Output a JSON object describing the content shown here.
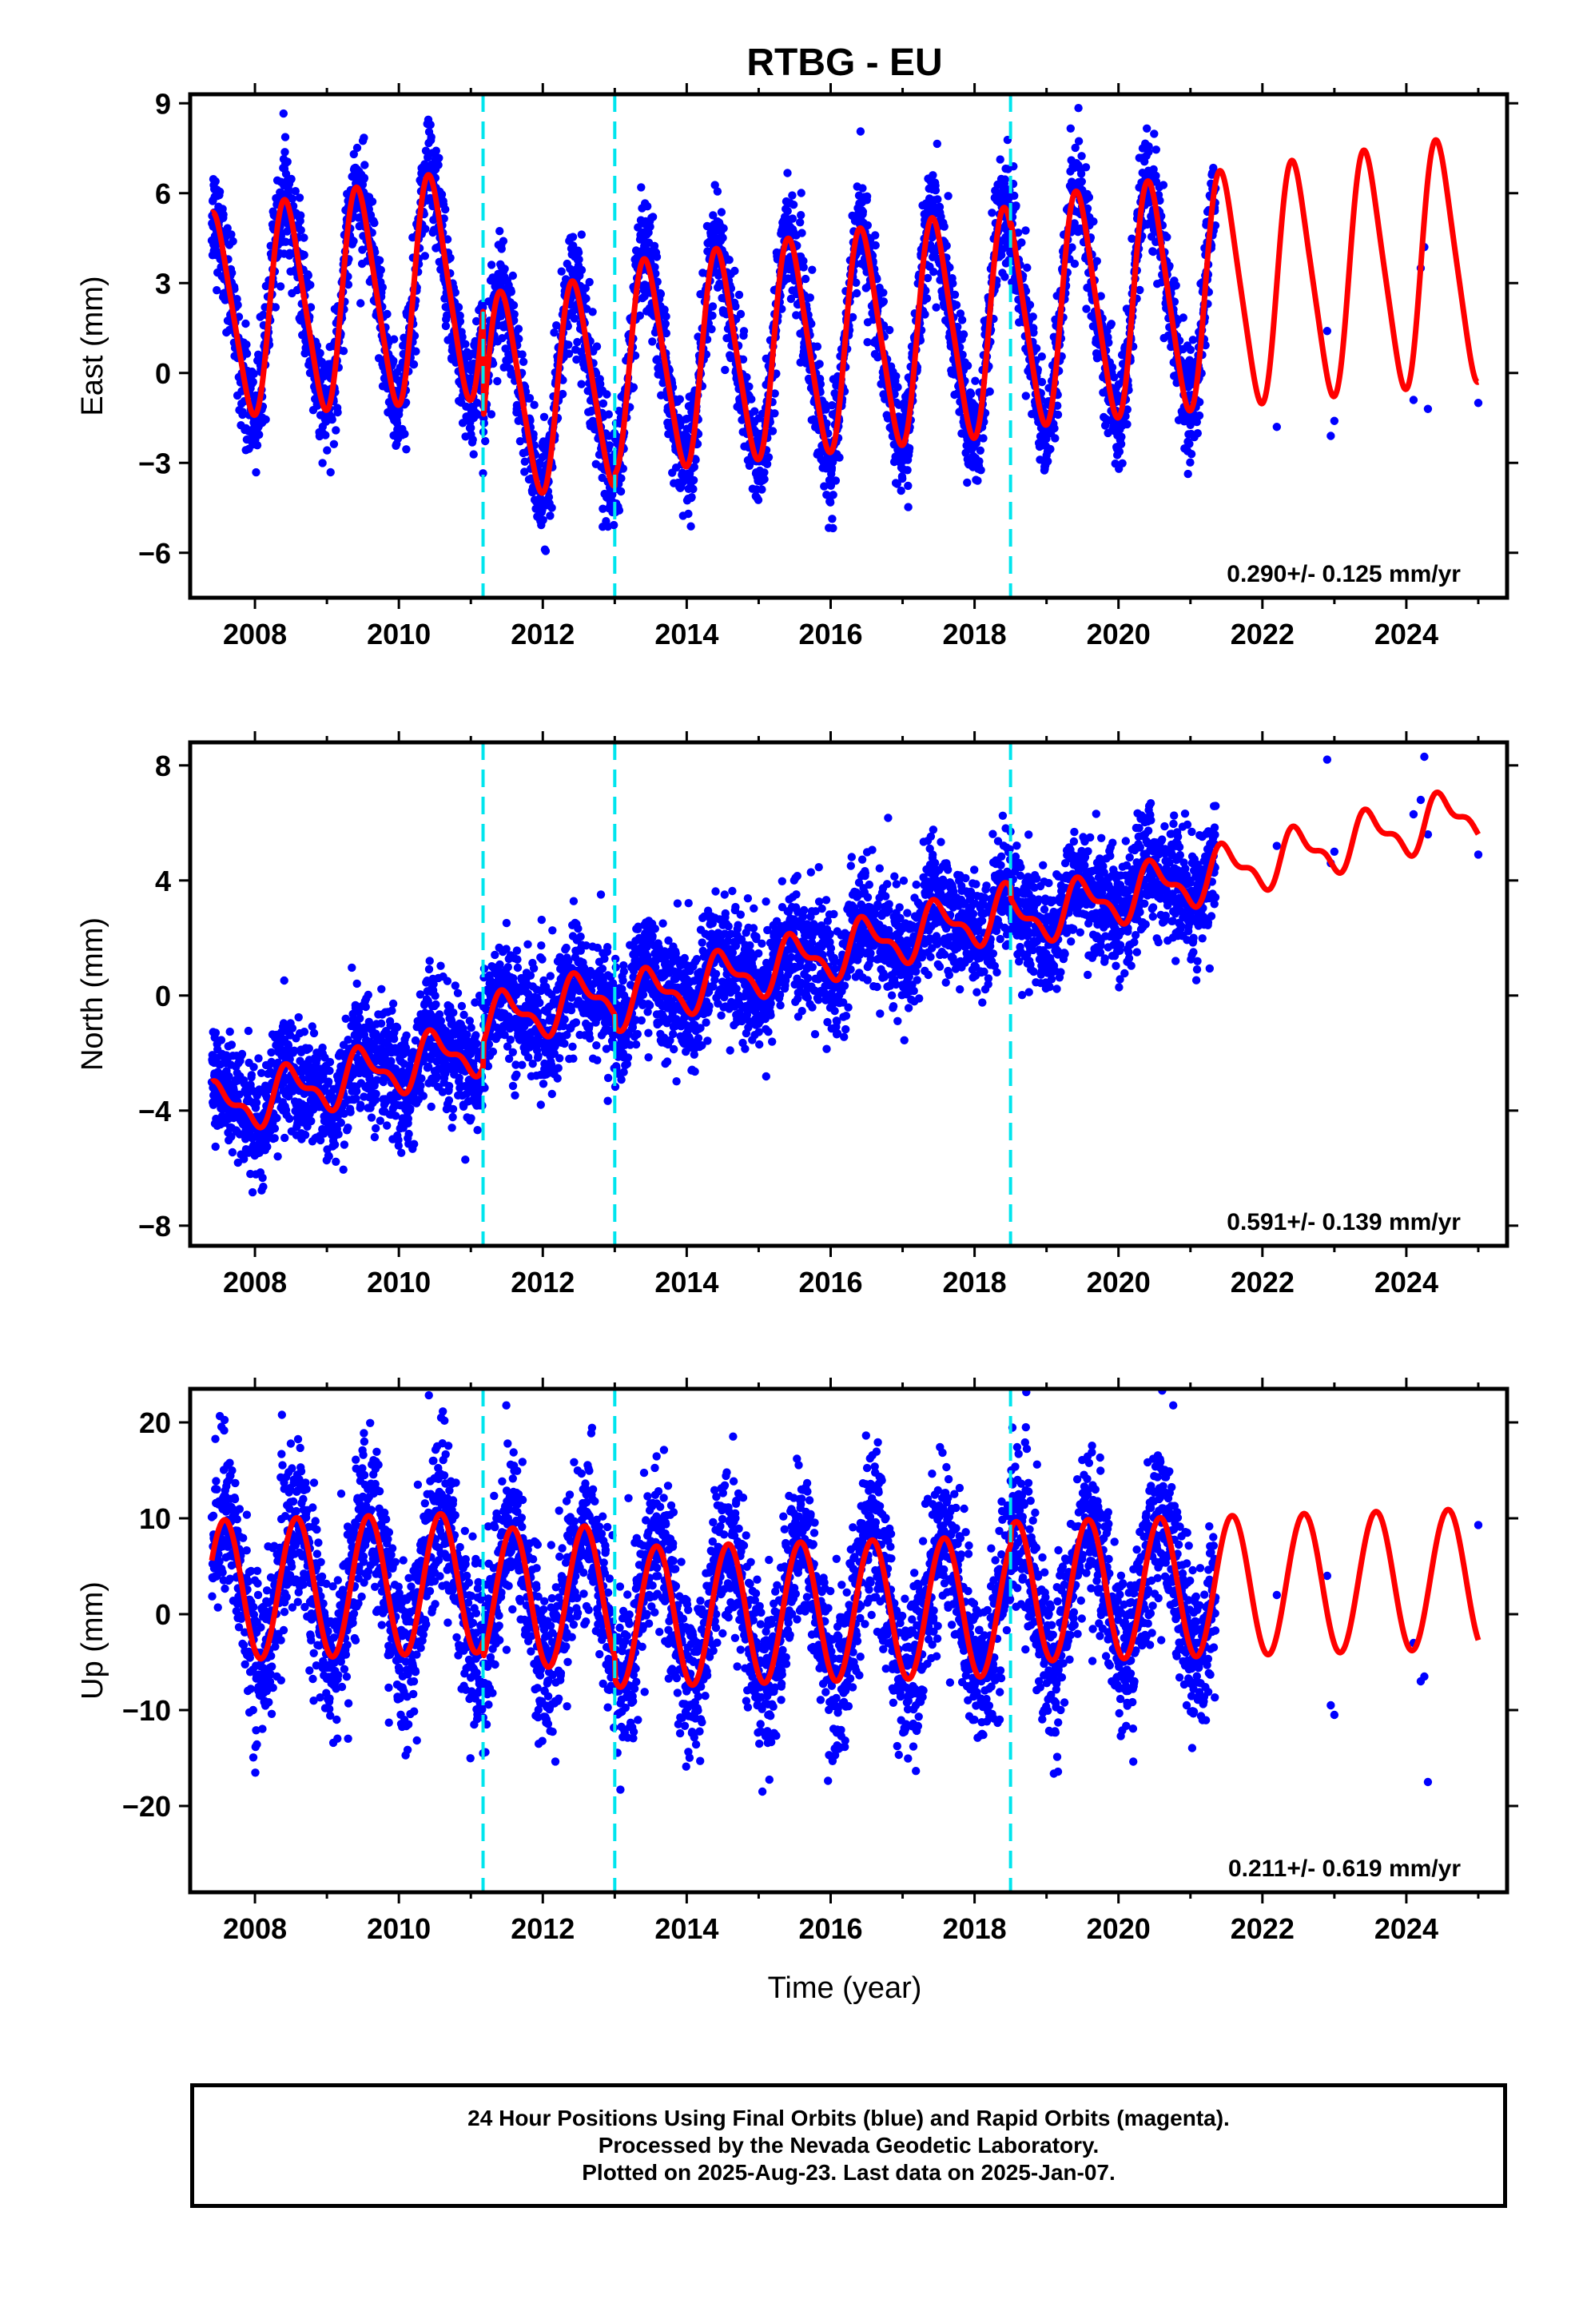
{
  "title": "RTBG - EU",
  "x_axis_label": "Time (year)",
  "caption": [
    "24 Hour Positions Using Final Orbits (blue) and Rapid Orbits (magenta).",
    "Processed by the Nevada Geodetic Laboratory.",
    "Plotted on 2025-Aug-23. Last data on 2025-Jan-07."
  ],
  "colors": {
    "points": "#0000ff",
    "model": "#ff0000",
    "breaks": "#00e5ee",
    "frame": "#000000"
  },
  "chart_data": [
    {
      "type": "scatter",
      "ylabel": "East (mm)",
      "xlim": [
        2007.1,
        2025.4
      ],
      "ylim": [
        -7.5,
        9.3
      ],
      "yticks": [
        -6,
        -3,
        0,
        3,
        6,
        9
      ],
      "ytick_labels": [
        "−6",
        "−3",
        "0",
        "3",
        "6",
        "9"
      ],
      "xticks": [
        2008,
        2010,
        2012,
        2014,
        2016,
        2018,
        2020,
        2022,
        2024
      ],
      "breaks": [
        2011.17,
        2013.0,
        2018.5
      ],
      "rate_label": "0.290+/- 0.125 mm/yr",
      "data_range": [
        2007.4,
        2021.35
      ],
      "sparse_points": [
        [
          2022.2,
          -1.8
        ],
        [
          2022.9,
          1.4
        ],
        [
          2022.95,
          -2.1
        ],
        [
          2023.0,
          -1.6
        ],
        [
          2024.1,
          -0.9
        ],
        [
          2024.2,
          3.5
        ],
        [
          2024.25,
          4.2
        ],
        [
          2024.3,
          -1.2
        ],
        [
          2025.0,
          -1.0
        ]
      ],
      "model": {
        "segments": [
          {
            "from": 2007.4,
            "to": 2011.17,
            "offset": 1.9,
            "slope": 0.29,
            "amp": 3.3,
            "amp_trend": 0.12
          },
          {
            "from": 2011.17,
            "to": 2013.0,
            "offset": -1.9,
            "slope": 0.29,
            "amp": 3.1,
            "amp_trend": 0.05
          },
          {
            "from": 2013.0,
            "to": 2018.5,
            "offset": -1.5,
            "slope": 0.29,
            "amp": 3.1,
            "amp_trend": 0.05
          },
          {
            "from": 2018.5,
            "to": 2025.0,
            "offset": -1.3,
            "slope": 0.29,
            "amp": 3.1,
            "amp_trend": 0.05
          }
        ],
        "phase_peak": 0.45,
        "semiannual": 0.15,
        "noise": 0.9
      }
    },
    {
      "type": "scatter",
      "ylabel": "North (mm)",
      "xlim": [
        2007.1,
        2025.4
      ],
      "ylim": [
        -8.7,
        8.8
      ],
      "yticks": [
        -8,
        -4,
        0,
        4,
        8
      ],
      "ytick_labels": [
        "−8",
        "−4",
        "0",
        "4",
        "8"
      ],
      "xticks": [
        2008,
        2010,
        2012,
        2014,
        2016,
        2018,
        2020,
        2022,
        2024
      ],
      "breaks": [
        2011.17,
        2013.0,
        2018.5
      ],
      "rate_label": "0.591+/- 0.139 mm/yr",
      "data_range": [
        2007.4,
        2021.35
      ],
      "sparse_points": [
        [
          2022.2,
          5.2
        ],
        [
          2022.9,
          8.2
        ],
        [
          2022.95,
          4.6
        ],
        [
          2023.0,
          5.0
        ],
        [
          2024.1,
          6.3
        ],
        [
          2024.2,
          6.8
        ],
        [
          2024.25,
          8.3
        ],
        [
          2024.3,
          5.6
        ],
        [
          2025.0,
          4.9
        ]
      ],
      "model": {
        "segments": [
          {
            "from": 2007.4,
            "to": 2011.17,
            "offset": -4.0,
            "slope": 0.59,
            "amp": 0.8,
            "amp_trend": 0.0
          },
          {
            "from": 2011.17,
            "to": 2013.0,
            "offset": -3.2,
            "slope": 0.59,
            "amp": 0.8,
            "amp_trend": 0.0
          },
          {
            "from": 2013.0,
            "to": 2018.5,
            "offset": -3.6,
            "slope": 0.59,
            "amp": 0.8,
            "amp_trend": 0.0
          },
          {
            "from": 2018.5,
            "to": 2025.0,
            "offset": -4.0,
            "slope": 0.59,
            "amp": 0.8,
            "amp_trend": 0.0
          }
        ],
        "phase_peak": 0.5,
        "semiannual": 0.45,
        "noise": 1.0
      }
    },
    {
      "type": "scatter",
      "ylabel": "Up (mm)",
      "xlim": [
        2007.1,
        2025.4
      ],
      "ylim": [
        -29.0,
        23.5
      ],
      "yticks": [
        -20,
        -10,
        0,
        10,
        20
      ],
      "ytick_labels": [
        "−20",
        "−10",
        "0",
        "10",
        "20"
      ],
      "xticks": [
        2008,
        2010,
        2012,
        2014,
        2016,
        2018,
        2020,
        2022,
        2024
      ],
      "breaks": [
        2011.17,
        2013.0,
        2018.5
      ],
      "rate_label": "0.211+/- 0.619 mm/yr",
      "data_range": [
        2007.4,
        2021.35
      ],
      "sparse_points": [
        [
          2022.2,
          2.0
        ],
        [
          2022.9,
          4.0
        ],
        [
          2022.95,
          -9.5
        ],
        [
          2023.0,
          -10.5
        ],
        [
          2024.1,
          -3.0
        ],
        [
          2024.2,
          -7.0
        ],
        [
          2024.25,
          -6.5
        ],
        [
          2024.3,
          -17.5
        ],
        [
          2025.0,
          9.3
        ]
      ],
      "model": {
        "segments": [
          {
            "from": 2007.4,
            "to": 2011.17,
            "offset": 2.5,
            "slope": 0.21,
            "amp": 7.3,
            "amp_trend": 0.0
          },
          {
            "from": 2011.17,
            "to": 2013.0,
            "offset": 0.8,
            "slope": 0.21,
            "amp": 7.3,
            "amp_trend": 0.0
          },
          {
            "from": 2013.0,
            "to": 2018.5,
            "offset": -1.5,
            "slope": 0.21,
            "amp": 7.3,
            "amp_trend": 0.0
          },
          {
            "from": 2018.5,
            "to": 2025.0,
            "offset": 0.0,
            "slope": 0.21,
            "amp": 7.3,
            "amp_trend": 0.0
          }
        ],
        "phase_peak": 0.58,
        "semiannual": 0.0,
        "noise": 4.2
      }
    }
  ]
}
